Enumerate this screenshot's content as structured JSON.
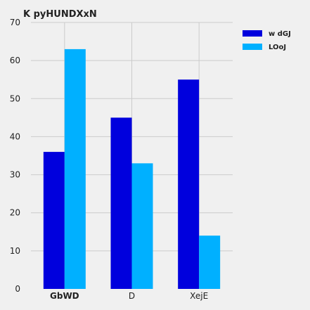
{
  "chart_data": {
    "type": "bar",
    "title": "K pyHUNDXxN",
    "xlabel": "",
    "ylabel": "",
    "categories": [
      "GbWD",
      "D",
      "XejE"
    ],
    "category_label_bold": [
      true,
      false,
      false
    ],
    "series": [
      {
        "name": "w dGJ",
        "values": [
          36,
          45,
          55
        ],
        "color": "#0000dd"
      },
      {
        "name": "LOoJ",
        "values": [
          63,
          33,
          14
        ],
        "color": "#00b0ff"
      }
    ],
    "ylim": [
      0,
      70
    ],
    "yticks": [
      0,
      10,
      20,
      30,
      40,
      50,
      60,
      70
    ],
    "grid": true,
    "legend_position": "top-right",
    "background": "#f0f0f0",
    "grid_color": "#cbcbcb"
  }
}
